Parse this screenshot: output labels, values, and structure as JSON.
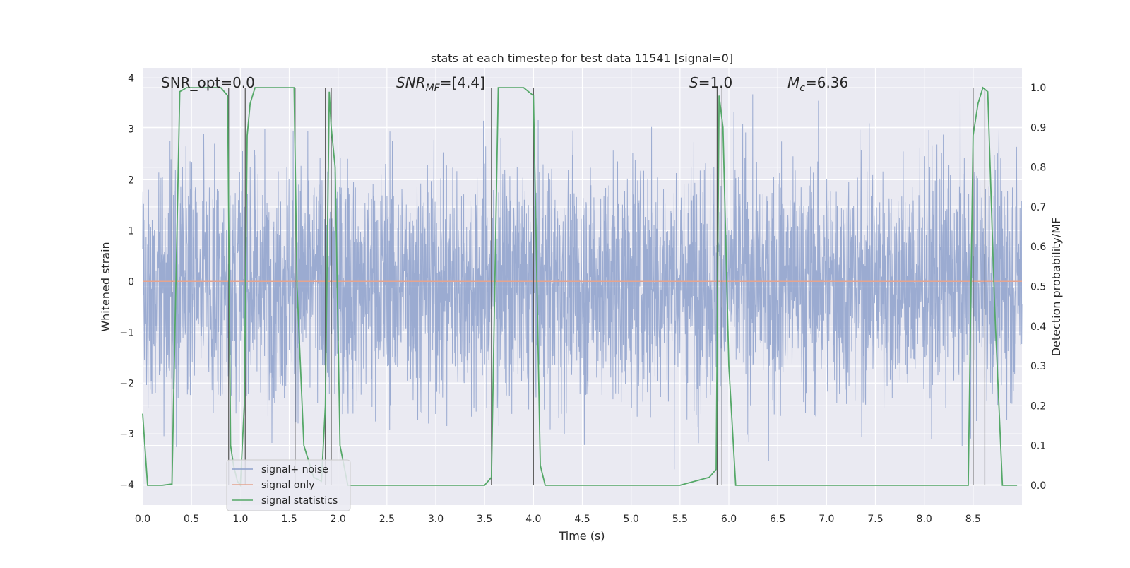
{
  "chart_data": {
    "type": "line",
    "title": "stats at each timestep for test data 11541 [signal=0]",
    "xlabel": "Time (s)",
    "ylabel_left": "Whitened strain",
    "ylabel_right": "Detection probability/MF",
    "xlim": [
      0.0,
      9.0
    ],
    "ylim_left": [
      -4.4,
      4.2
    ],
    "ylim_right": [
      -0.05,
      1.05
    ],
    "x_ticks": [
      "0.0",
      "0.5",
      "1.0",
      "1.5",
      "2.0",
      "2.5",
      "3.0",
      "3.5",
      "4.0",
      "4.5",
      "5.0",
      "5.5",
      "6.0",
      "6.5",
      "7.0",
      "7.5",
      "8.0",
      "8.5"
    ],
    "y_ticks_left": [
      "4",
      "3",
      "2",
      "1",
      "0",
      "−1",
      "−2",
      "−3",
      "−4"
    ],
    "y_ticks_right": [
      "1.0",
      "0.9",
      "0.8",
      "0.7",
      "0.6",
      "0.5",
      "0.4",
      "0.3",
      "0.2",
      "0.1",
      "0.0"
    ],
    "grid": true,
    "legend_position": "lower-left",
    "annotations": {
      "snr_opt": "SNR_opt=0.0",
      "snr_mf": "SNR",
      "snr_mf_sub": "MF",
      "snr_mf_value": "=[4.4]",
      "s": "S",
      "s_value": "=1.0",
      "mc": "M",
      "mc_sub": "c",
      "mc_value": "=6.36"
    },
    "series": [
      {
        "name": "signal+ noise",
        "color": "#8da0cb",
        "axis": "left",
        "description_values": {
          "center": 0.0,
          "typical_amplitude": 1.5,
          "max": 3.8,
          "min": -4.1
        }
      },
      {
        "name": "signal only",
        "color": "#e5a48f",
        "axis": "left",
        "x": [
          0.0,
          9.0
        ],
        "y": [
          0.0,
          0.0
        ]
      },
      {
        "name": "signal statistics",
        "color": "#55a868",
        "axis": "right",
        "x": [
          0.0,
          0.05,
          0.1,
          0.2,
          0.3,
          0.33,
          0.38,
          0.45,
          0.55,
          0.7,
          0.8,
          0.87,
          0.9,
          0.93,
          0.97,
          1.0,
          1.04,
          1.07,
          1.1,
          1.15,
          1.25,
          1.4,
          1.55,
          1.58,
          1.65,
          1.75,
          1.83,
          1.87,
          1.91,
          1.93,
          1.97,
          2.02,
          2.1,
          2.5,
          3.0,
          3.5,
          3.57,
          3.64,
          3.75,
          3.9,
          4.0,
          4.07,
          4.12,
          4.5,
          5.0,
          5.5,
          5.8,
          5.87,
          5.9,
          5.94,
          6.0,
          6.07,
          6.5,
          7.0,
          7.5,
          8.0,
          8.45,
          8.5,
          8.55,
          8.6,
          8.65,
          8.72,
          8.8,
          8.95
        ],
        "y": [
          0.18,
          0.0,
          0.0,
          0.0,
          0.003,
          0.38,
          0.99,
          1.0,
          1.0,
          1.0,
          1.0,
          0.98,
          0.1,
          0.05,
          0.01,
          0.0,
          0.2,
          0.88,
          0.96,
          1.0,
          1.0,
          1.0,
          1.0,
          0.5,
          0.1,
          0.02,
          0.01,
          0.2,
          0.99,
          0.9,
          0.8,
          0.1,
          0.0,
          0.0,
          0.0,
          0.0,
          0.02,
          1.0,
          1.0,
          1.0,
          0.98,
          0.05,
          0.0,
          0.0,
          0.0,
          0.0,
          0.02,
          0.04,
          0.98,
          0.9,
          0.3,
          0.0,
          0.0,
          0.0,
          0.0,
          0.0,
          0.0,
          0.88,
          0.96,
          1.0,
          0.99,
          0.45,
          0.0,
          0.0
        ]
      }
    ],
    "vertical_markers_x": [
      0.3,
      0.88,
      1.05,
      1.56,
      1.87,
      1.93,
      3.57,
      4.0,
      5.88,
      5.93,
      8.5,
      8.62
    ]
  }
}
